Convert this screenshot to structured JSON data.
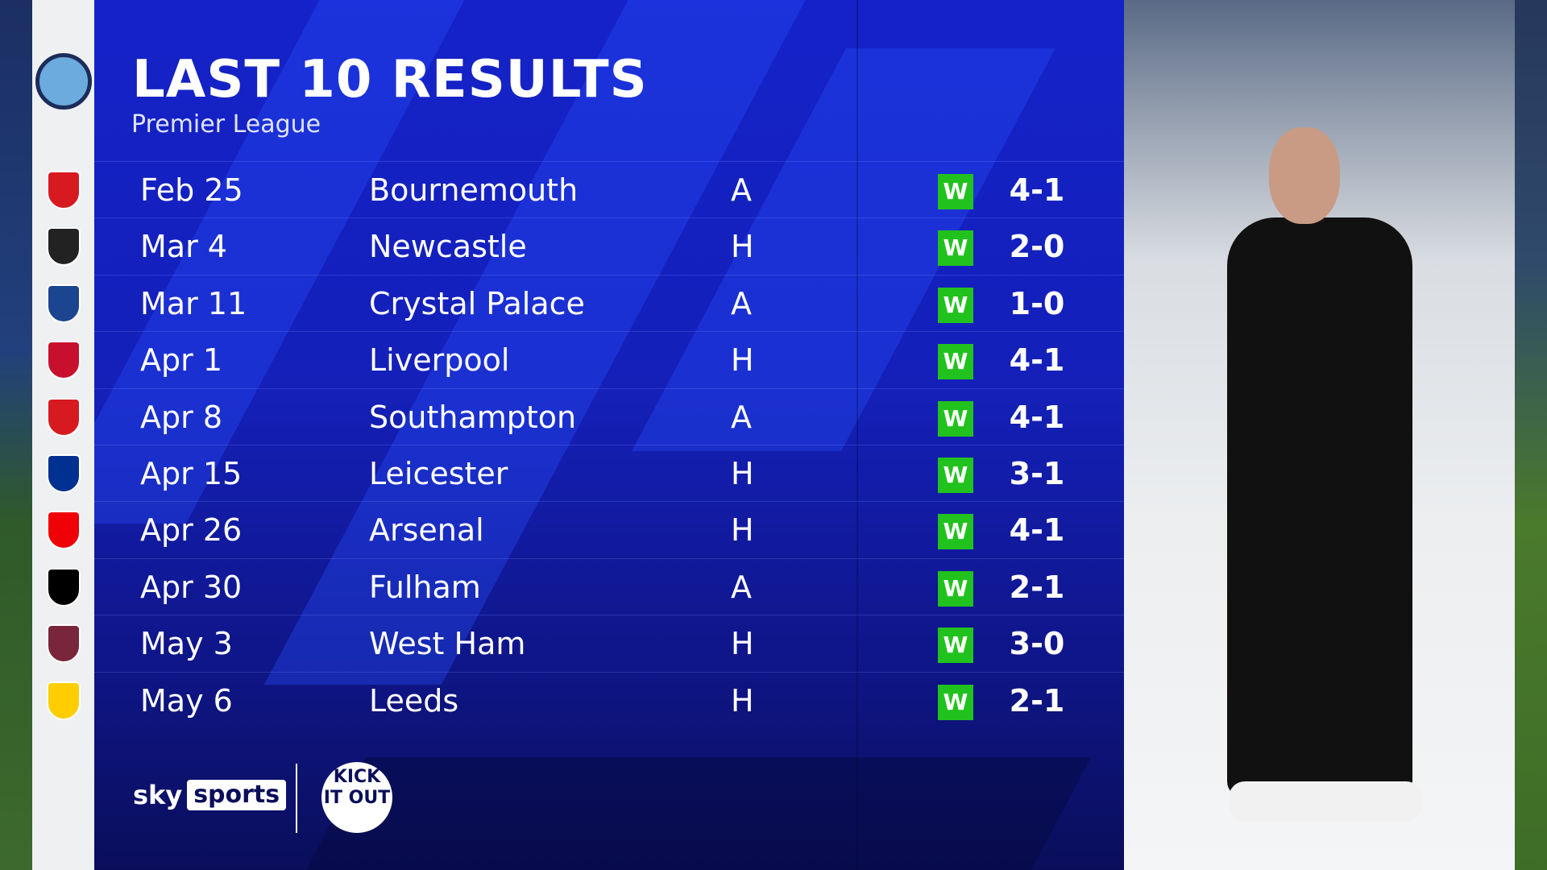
{
  "header": {
    "title": "LAST 10 RESULTS",
    "subtitle": "Premier League"
  },
  "team_crest": "manchester-city-crest",
  "colors": {
    "panel": "#1420b8",
    "win_badge": "#21c21e"
  },
  "results": [
    {
      "date": "Feb 25",
      "opponent": "Bournemouth",
      "venue": "A",
      "result": "W",
      "score": "4-1",
      "crest": "bournemouth-crest",
      "crest_color": "#d71920"
    },
    {
      "date": "Mar 4",
      "opponent": "Newcastle",
      "venue": "H",
      "result": "W",
      "score": "2-0",
      "crest": "newcastle-crest",
      "crest_color": "#222222"
    },
    {
      "date": "Mar 11",
      "opponent": "Crystal Palace",
      "venue": "A",
      "result": "W",
      "score": "1-0",
      "crest": "crystal-palace-crest",
      "crest_color": "#1b458f"
    },
    {
      "date": "Apr 1",
      "opponent": "Liverpool",
      "venue": "H",
      "result": "W",
      "score": "4-1",
      "crest": "liverpool-crest",
      "crest_color": "#c8102e"
    },
    {
      "date": "Apr 8",
      "opponent": "Southampton",
      "venue": "A",
      "result": "W",
      "score": "4-1",
      "crest": "southampton-crest",
      "crest_color": "#d71920"
    },
    {
      "date": "Apr 15",
      "opponent": "Leicester",
      "venue": "H",
      "result": "W",
      "score": "3-1",
      "crest": "leicester-crest",
      "crest_color": "#003090"
    },
    {
      "date": "Apr 26",
      "opponent": "Arsenal",
      "venue": "H",
      "result": "W",
      "score": "4-1",
      "crest": "arsenal-crest",
      "crest_color": "#ef0107"
    },
    {
      "date": "Apr 30",
      "opponent": "Fulham",
      "venue": "A",
      "result": "W",
      "score": "2-1",
      "crest": "fulham-crest",
      "crest_color": "#000000"
    },
    {
      "date": "May 3",
      "opponent": "West Ham",
      "venue": "H",
      "result": "W",
      "score": "3-0",
      "crest": "west-ham-crest",
      "crest_color": "#7a263a"
    },
    {
      "date": "May 6",
      "opponent": "Leeds",
      "venue": "H",
      "result": "W",
      "score": "2-1",
      "crest": "leeds-crest",
      "crest_color": "#ffcd00"
    }
  ],
  "footer": {
    "sky": "sky",
    "sports": "sports",
    "kick_it_out": "KICK IT OUT"
  }
}
